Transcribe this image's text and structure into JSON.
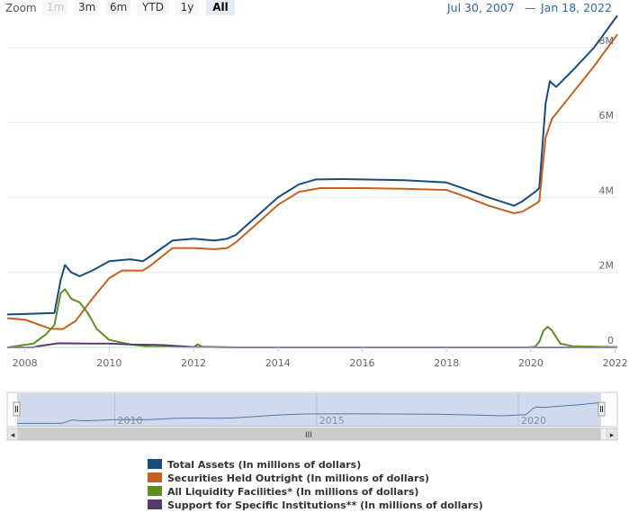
{
  "range_selector": {
    "zoom_label": "Zoom",
    "buttons": [
      {
        "label": "1m",
        "state": "disabled"
      },
      {
        "label": "3m",
        "state": "normal"
      },
      {
        "label": "6m",
        "state": "normal"
      },
      {
        "label": "YTD",
        "state": "normal"
      },
      {
        "label": "1y",
        "state": "normal"
      },
      {
        "label": "All",
        "state": "selected"
      }
    ],
    "from_date": "Jul 30, 2007",
    "dash": "—",
    "to_date": "Jan 18, 2022"
  },
  "chart_data": {
    "type": "line",
    "title": "",
    "xlabel": "",
    "ylabel": "",
    "xlim": [
      2007.58,
      2022.05
    ],
    "ylim": [
      0,
      8500000
    ],
    "x_ticks": [
      "2008",
      "2010",
      "2012",
      "2014",
      "2016",
      "2018",
      "2020",
      "2022"
    ],
    "y_ticks": [
      "0",
      "2M",
      "4M",
      "6M",
      "8M"
    ],
    "grid": true,
    "legend_position": "bottom",
    "series": [
      {
        "name": "Total Assets (In millions of dollars)",
        "color": "#1a4a80",
        "points": [
          [
            2007.58,
            880000
          ],
          [
            2008.0,
            890000
          ],
          [
            2008.7,
            920000
          ],
          [
            2008.85,
            1800000
          ],
          [
            2008.95,
            2200000
          ],
          [
            2009.1,
            2000000
          ],
          [
            2009.3,
            1900000
          ],
          [
            2009.6,
            2050000
          ],
          [
            2010.0,
            2300000
          ],
          [
            2010.5,
            2350000
          ],
          [
            2010.8,
            2300000
          ],
          [
            2011.0,
            2450000
          ],
          [
            2011.5,
            2850000
          ],
          [
            2012.0,
            2900000
          ],
          [
            2012.5,
            2850000
          ],
          [
            2012.8,
            2900000
          ],
          [
            2013.0,
            3000000
          ],
          [
            2013.5,
            3500000
          ],
          [
            2014.0,
            4000000
          ],
          [
            2014.5,
            4350000
          ],
          [
            2014.9,
            4480000
          ],
          [
            2015.5,
            4490000
          ],
          [
            2016.0,
            4480000
          ],
          [
            2017.0,
            4460000
          ],
          [
            2018.0,
            4400000
          ],
          [
            2018.5,
            4200000
          ],
          [
            2019.0,
            4000000
          ],
          [
            2019.6,
            3780000
          ],
          [
            2019.8,
            3900000
          ],
          [
            2020.1,
            4150000
          ],
          [
            2020.2,
            4250000
          ],
          [
            2020.35,
            6500000
          ],
          [
            2020.45,
            7100000
          ],
          [
            2020.6,
            6950000
          ],
          [
            2021.0,
            7400000
          ],
          [
            2021.5,
            8000000
          ],
          [
            2022.05,
            8850000
          ]
        ]
      },
      {
        "name": "Securities Held Outright (In millions of dollars)",
        "color": "#c5601d",
        "points": [
          [
            2007.58,
            780000
          ],
          [
            2008.0,
            740000
          ],
          [
            2008.6,
            500000
          ],
          [
            2008.9,
            490000
          ],
          [
            2009.2,
            700000
          ],
          [
            2009.6,
            1300000
          ],
          [
            2010.0,
            1850000
          ],
          [
            2010.3,
            2050000
          ],
          [
            2010.8,
            2050000
          ],
          [
            2011.0,
            2200000
          ],
          [
            2011.5,
            2650000
          ],
          [
            2012.0,
            2650000
          ],
          [
            2012.5,
            2620000
          ],
          [
            2012.8,
            2650000
          ],
          [
            2013.0,
            2800000
          ],
          [
            2013.5,
            3300000
          ],
          [
            2014.0,
            3800000
          ],
          [
            2014.5,
            4150000
          ],
          [
            2015.0,
            4250000
          ],
          [
            2016.0,
            4250000
          ],
          [
            2017.0,
            4230000
          ],
          [
            2018.0,
            4200000
          ],
          [
            2018.5,
            4000000
          ],
          [
            2019.0,
            3780000
          ],
          [
            2019.6,
            3580000
          ],
          [
            2019.8,
            3620000
          ],
          [
            2020.1,
            3820000
          ],
          [
            2020.2,
            3900000
          ],
          [
            2020.35,
            5600000
          ],
          [
            2020.5,
            6100000
          ],
          [
            2021.0,
            6800000
          ],
          [
            2021.5,
            7500000
          ],
          [
            2022.05,
            8350000
          ]
        ]
      },
      {
        "name": "All Liquidity Facilities* (In millions of dollars)",
        "color": "#5b8f22",
        "points": [
          [
            2007.58,
            0
          ],
          [
            2007.9,
            50000
          ],
          [
            2008.2,
            100000
          ],
          [
            2008.5,
            350000
          ],
          [
            2008.7,
            600000
          ],
          [
            2008.85,
            1450000
          ],
          [
            2008.95,
            1550000
          ],
          [
            2009.1,
            1300000
          ],
          [
            2009.3,
            1200000
          ],
          [
            2009.5,
            900000
          ],
          [
            2009.7,
            500000
          ],
          [
            2010.0,
            200000
          ],
          [
            2010.5,
            80000
          ],
          [
            2011.0,
            20000
          ],
          [
            2012.0,
            5000
          ],
          [
            2012.1,
            80000
          ],
          [
            2012.2,
            20000
          ],
          [
            2013.0,
            0
          ],
          [
            2019.9,
            0
          ],
          [
            2020.1,
            20000
          ],
          [
            2020.2,
            150000
          ],
          [
            2020.3,
            450000
          ],
          [
            2020.4,
            550000
          ],
          [
            2020.5,
            450000
          ],
          [
            2020.7,
            100000
          ],
          [
            2021.0,
            30000
          ],
          [
            2022.05,
            10000
          ]
        ]
      },
      {
        "name": "Support for Specific Institutions** (In millions of dollars)",
        "color": "#5a3a6e",
        "points": [
          [
            2007.58,
            0
          ],
          [
            2008.2,
            0
          ],
          [
            2008.3,
            30000
          ],
          [
            2008.8,
            110000
          ],
          [
            2009.5,
            100000
          ],
          [
            2010.0,
            100000
          ],
          [
            2010.5,
            80000
          ],
          [
            2011.0,
            70000
          ],
          [
            2011.3,
            60000
          ],
          [
            2012.0,
            10000
          ],
          [
            2012.5,
            5000
          ],
          [
            2013.0,
            0
          ],
          [
            2022.05,
            0
          ]
        ]
      }
    ]
  },
  "navigator": {
    "tick_labels": [
      "2010",
      "2015",
      "2020"
    ],
    "range": [
      2007.58,
      2022.05
    ],
    "scroll_grip": "III",
    "left_arrow": "◂",
    "right_arrow": "▸"
  }
}
